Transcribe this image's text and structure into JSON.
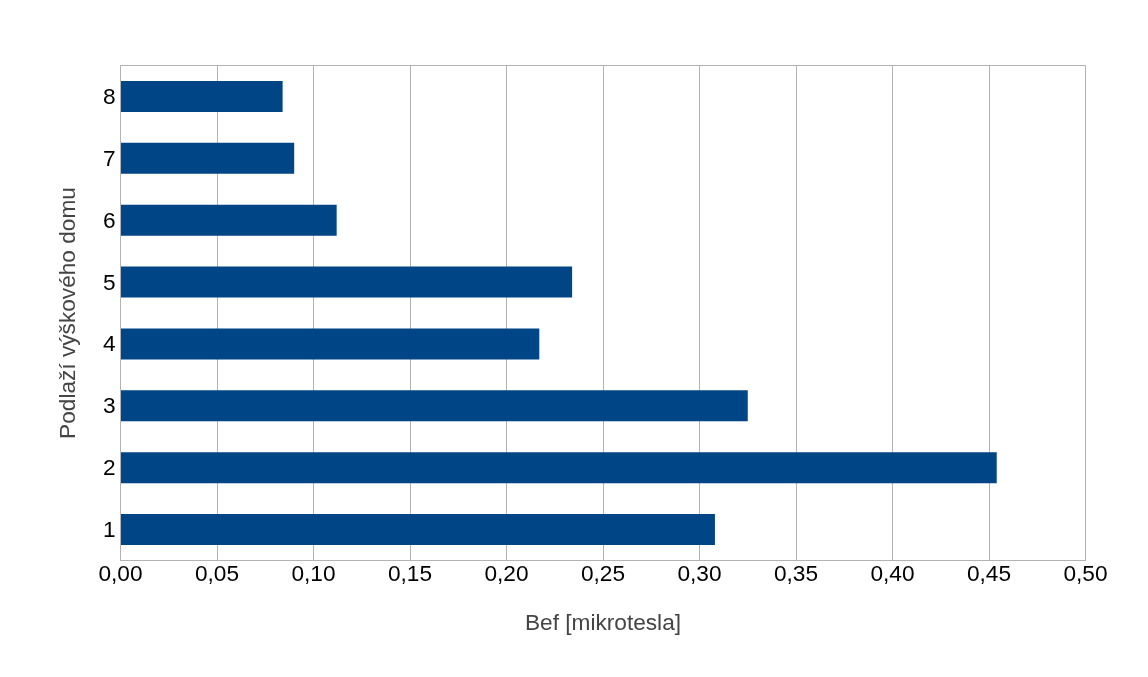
{
  "chart_data": {
    "type": "bar",
    "orientation": "horizontal",
    "xlabel": "Bef [mikrotesla]",
    "ylabel": "Podlaží výškového domu",
    "categories": [
      "8",
      "7",
      "6",
      "5",
      "4",
      "3",
      "2",
      "1"
    ],
    "values": [
      0.084,
      0.09,
      0.112,
      0.234,
      0.217,
      0.325,
      0.454,
      0.308
    ],
    "color": "#004586",
    "xlim": [
      0,
      0.5
    ],
    "xticks": [
      {
        "value": 0,
        "label": "0,00"
      },
      {
        "value": 0.05,
        "label": "0,05"
      },
      {
        "value": 0.1,
        "label": "0,10"
      },
      {
        "value": 0.15,
        "label": "0,15"
      },
      {
        "value": 0.2,
        "label": "0,20"
      },
      {
        "value": 0.25,
        "label": "0,25"
      },
      {
        "value": 0.3,
        "label": "0,30"
      },
      {
        "value": 0.35,
        "label": "0,35"
      },
      {
        "value": 0.4,
        "label": "0,40"
      },
      {
        "value": 0.45,
        "label": "0,45"
      },
      {
        "value": 0.5,
        "label": "0,50"
      }
    ],
    "grid": "x"
  }
}
